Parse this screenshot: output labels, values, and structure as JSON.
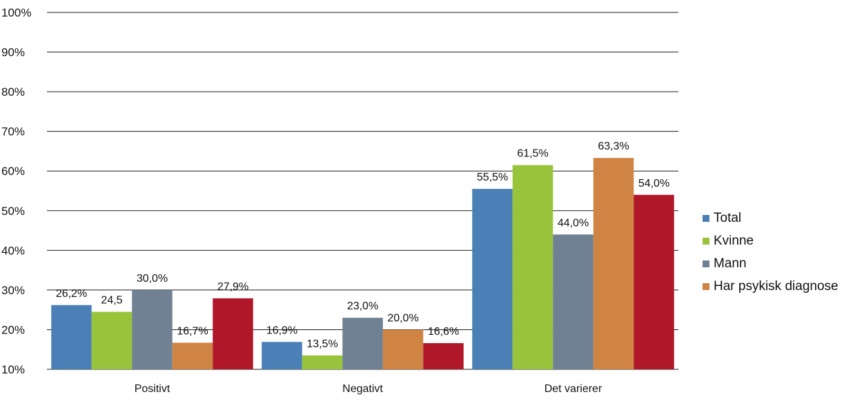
{
  "chart_data": {
    "type": "bar",
    "title": "",
    "xlabel": "",
    "ylabel": "",
    "ylim": [
      10,
      100
    ],
    "yticks": [
      "10%",
      "20%",
      "30%",
      "40%",
      "50%",
      "60%",
      "70%",
      "80%",
      "90%",
      "100%"
    ],
    "grid": true,
    "legend_position": "right",
    "categories": [
      "Positivt",
      "Negativt",
      "Det varierer"
    ],
    "series": [
      {
        "name": "Total",
        "color": "#4a80b5",
        "values": [
          26.2,
          16.9,
          55.5
        ],
        "labels": [
          "26,2%",
          "16,9%",
          "55,5%"
        ]
      },
      {
        "name": "Kvinne",
        "color": "#97c43b",
        "values": [
          24.5,
          13.5,
          61.5
        ],
        "labels": [
          "24,5",
          "13,5%",
          "61,5%"
        ]
      },
      {
        "name": "Mann",
        "color": "#6f8192",
        "values": [
          30.0,
          23.0,
          44.0
        ],
        "labels": [
          "30,0%",
          "23,0%",
          "44,0%"
        ]
      },
      {
        "name": "Har psykisk diagnose",
        "color": "#cf8443",
        "values": [
          16.7,
          20.0,
          63.3
        ],
        "labels": [
          "16,7%",
          "20,0%",
          "63,3%"
        ]
      },
      {
        "name": "",
        "color": "#b0182a",
        "values": [
          27.9,
          16.6,
          54.0
        ],
        "labels": [
          "27,9%",
          "16,6%",
          "54,0%"
        ]
      }
    ]
  }
}
